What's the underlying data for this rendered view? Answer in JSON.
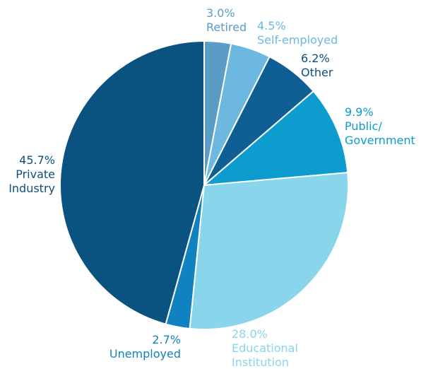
{
  "chart_data": {
    "type": "pie",
    "title": "",
    "start": "12 o'clock, clockwise",
    "slices": [
      {
        "key": "retired",
        "name": "Retired",
        "value": 3.0,
        "pct": "3.0%",
        "color": "#5a9cc5",
        "label_color": "#5a9cc5"
      },
      {
        "key": "self-employed",
        "name": "Self-employed",
        "value": 4.5,
        "pct": "4.5%",
        "color": "#6cb8e0",
        "label_color": "#6cb8e0"
      },
      {
        "key": "other",
        "name": "Other",
        "value": 6.2,
        "pct": "6.2%",
        "color": "#0f5f94",
        "label_color": "#0e4f7e"
      },
      {
        "key": "public-government",
        "name": "Public/\nGovernment",
        "value": 9.9,
        "pct": "9.9%",
        "color": "#0c9dce",
        "label_color": "#0c9dce"
      },
      {
        "key": "educational-institution",
        "name": "Educational\nInstitution",
        "value": 28.0,
        "pct": "28.0%",
        "color": "#88d5ec",
        "label_color": "#88d5ec"
      },
      {
        "key": "unemployed",
        "name": "Unemployed",
        "value": 2.7,
        "pct": "2.7%",
        "color": "#1182c0",
        "label_color": "#1182c0"
      },
      {
        "key": "private-industry",
        "name": "Private\nIndustry",
        "value": 45.7,
        "pct": "45.7%",
        "color": "#0a5380",
        "label_color": "#0e4f7e"
      }
    ]
  }
}
